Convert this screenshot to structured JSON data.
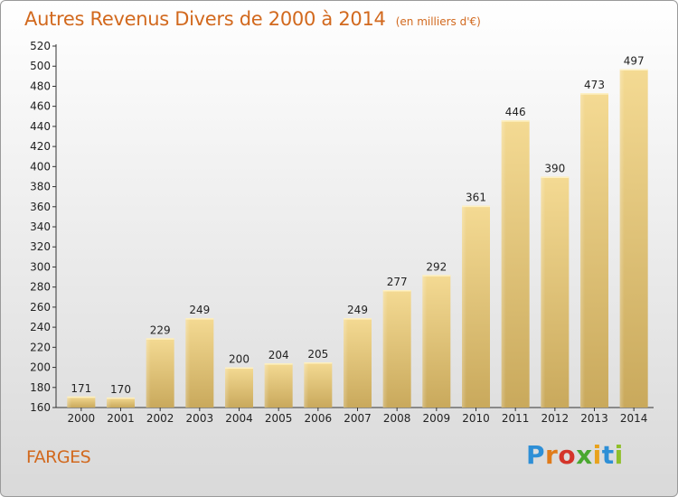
{
  "chart_data": {
    "type": "bar",
    "title": "Autres Revenus Divers de 2000 à 2014",
    "unit_note": "(en milliers d'€)",
    "categories": [
      "2000",
      "2001",
      "2002",
      "2003",
      "2004",
      "2005",
      "2006",
      "2007",
      "2008",
      "2009",
      "2010",
      "2011",
      "2012",
      "2013",
      "2014"
    ],
    "values": [
      171,
      170,
      229,
      249,
      200,
      204,
      205,
      249,
      277,
      292,
      361,
      446,
      390,
      473,
      497
    ],
    "ylim": [
      160,
      520
    ],
    "yticks": [
      160,
      180,
      200,
      220,
      240,
      260,
      280,
      300,
      320,
      340,
      360,
      380,
      400,
      420,
      440,
      460,
      480,
      500,
      520
    ],
    "grid": false,
    "bar_color": "#e6c878"
  },
  "commune": "FARGES",
  "brand": {
    "letters": [
      "P",
      "r",
      "o",
      "x",
      "i",
      "t",
      "i"
    ],
    "colors": [
      "#2e8fd6",
      "#e07b1a",
      "#d4342a",
      "#4aa830",
      "#e8a21c",
      "#2e8fd6",
      "#8fbf2a"
    ]
  }
}
